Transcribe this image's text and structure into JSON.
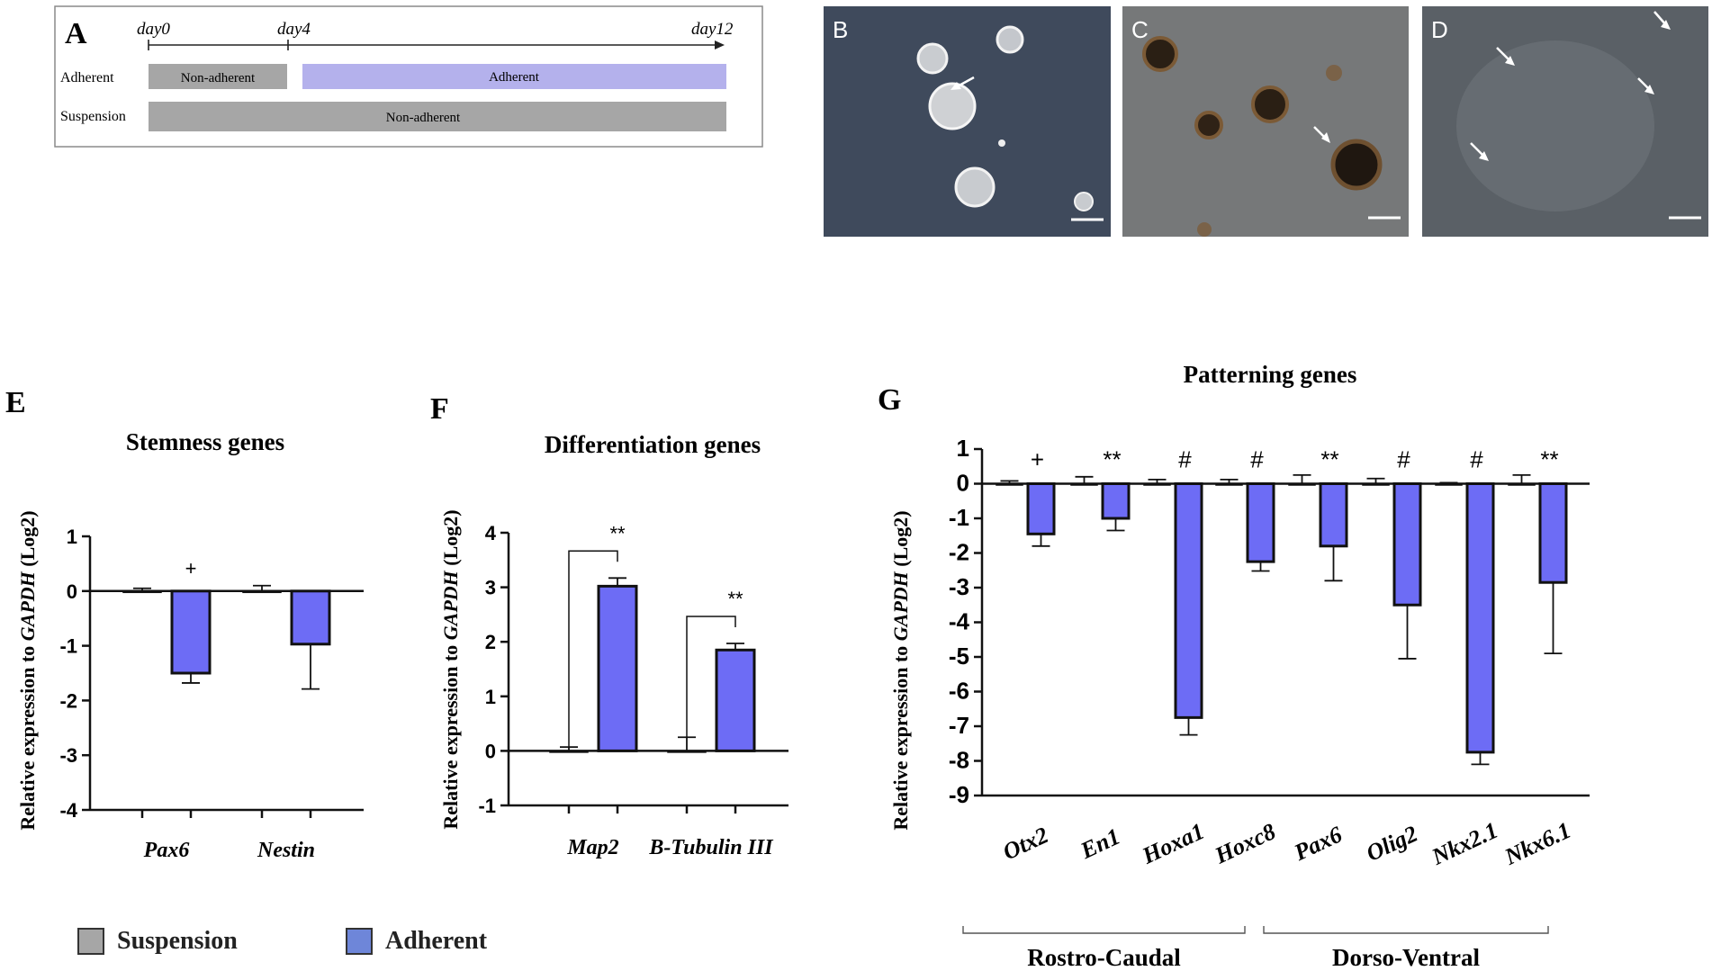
{
  "panel_a": {
    "label": "A",
    "days": [
      "day0",
      "day4",
      "day12"
    ],
    "rows": [
      {
        "name": "Adherent",
        "segments": [
          {
            "label": "Non-adherent",
            "color": "#a6a6a6"
          },
          {
            "label": "Adherent",
            "color": "#b4b1ec"
          }
        ]
      },
      {
        "name": "Suspension",
        "segments": [
          {
            "label": "Non-adherent",
            "color": "#a6a6a6"
          }
        ]
      }
    ]
  },
  "micrographs": [
    {
      "label": "B",
      "description_icon": "neurosphere-image",
      "tint": "#3f4a5c"
    },
    {
      "label": "C",
      "description_icon": "adherent-sphere-image",
      "tint": "#6c6d6d"
    },
    {
      "label": "D",
      "description_icon": "migrating-cells-image",
      "tint": "#5a6066"
    }
  ],
  "colors": {
    "suspension": "#a6a6a6",
    "adherent": "#6d6cf5"
  },
  "legend": [
    {
      "label": "Suspension",
      "color": "#a6a6a6"
    },
    {
      "label": "Adherent",
      "color": "#6d6cf5"
    }
  ],
  "chart_data": [
    {
      "panel": "E",
      "type": "bar",
      "title": "Stemness genes",
      "ylabel_prefix": "Relative expression to ",
      "ylabel_gene": "GAPDH",
      "ylabel_suffix": " (Log2)",
      "ylim": [
        -4,
        1
      ],
      "yticks": [
        1,
        0,
        -1,
        -2,
        -3,
        -4
      ],
      "categories": [
        "Pax6",
        "Nestin"
      ],
      "series": [
        {
          "name": "Suspension",
          "values": [
            0,
            0
          ],
          "errors": [
            0.05,
            0.1
          ]
        },
        {
          "name": "Adherent",
          "values": [
            -1.5,
            -0.97
          ],
          "errors": [
            0.18,
            0.82
          ]
        }
      ],
      "annotations": [
        "+",
        ""
      ]
    },
    {
      "panel": "F",
      "type": "bar",
      "title": "Differentiation genes",
      "ylabel_prefix": "Relative expression to ",
      "ylabel_gene": "GAPDH",
      "ylabel_suffix": " (Log2)",
      "ylim": [
        -1,
        4
      ],
      "yticks": [
        4,
        3,
        2,
        1,
        0,
        -1
      ],
      "categories": [
        "Map2",
        "B-Tubulin III"
      ],
      "series": [
        {
          "name": "Suspension",
          "values": [
            0,
            0
          ],
          "errors": [
            0.07,
            0.25
          ]
        },
        {
          "name": "Adherent",
          "values": [
            3.02,
            1.85
          ],
          "errors": [
            0.15,
            0.12
          ]
        }
      ],
      "annotations": [
        "**",
        "**"
      ]
    },
    {
      "panel": "G",
      "type": "bar",
      "title": "Patterning genes",
      "ylabel_prefix": "Relative expression to ",
      "ylabel_gene": "GAPDH",
      "ylabel_suffix": " (Log2)",
      "ylim": [
        -9,
        1
      ],
      "yticks": [
        1,
        0,
        -1,
        -2,
        -3,
        -4,
        -5,
        -6,
        -7,
        -8,
        -9
      ],
      "categories": [
        "Otx2",
        "En1",
        "Hoxa1",
        "Hoxc8",
        "Pax6",
        "Olig2",
        "Nkx2.1",
        "Nkx6.1"
      ],
      "series": [
        {
          "name": "Suspension",
          "values": [
            0,
            0,
            0,
            0,
            0,
            0,
            0,
            0
          ],
          "errors": [
            0.08,
            0.2,
            0.12,
            0.12,
            0.25,
            0.15,
            0.03,
            0.25
          ]
        },
        {
          "name": "Adherent",
          "values": [
            -1.45,
            -1.0,
            -6.75,
            -2.25,
            -1.8,
            -3.5,
            -7.75,
            -2.85
          ],
          "errors": [
            0.35,
            0.35,
            0.5,
            0.27,
            1.0,
            1.55,
            0.35,
            2.05
          ]
        }
      ],
      "annotations": [
        "+",
        "**",
        "#",
        "#",
        "**",
        "#",
        "#",
        "**"
      ],
      "groups": [
        {
          "label": "Rostro-Caudal",
          "span": [
            0,
            3
          ]
        },
        {
          "label": "Dorso-Ventral",
          "span": [
            4,
            7
          ]
        }
      ]
    }
  ]
}
